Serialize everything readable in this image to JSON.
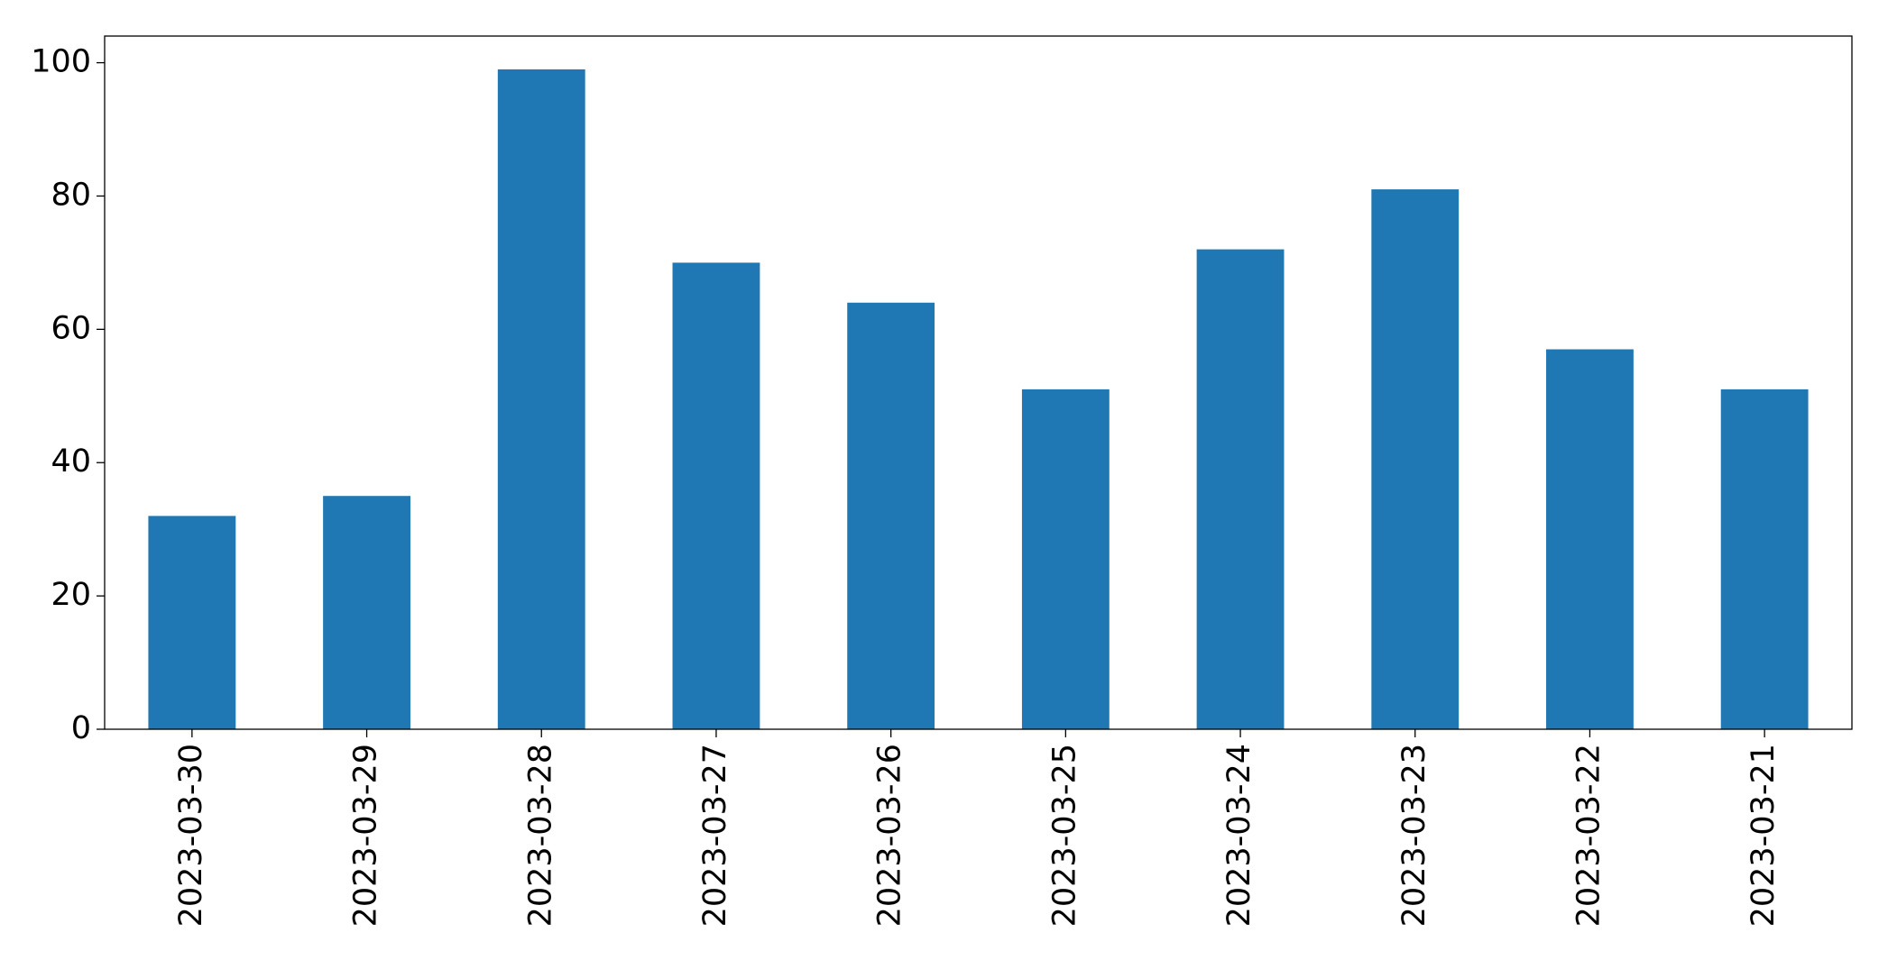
{
  "chart_data": {
    "type": "bar",
    "categories": [
      "2023-03-30",
      "2023-03-29",
      "2023-03-28",
      "2023-03-27",
      "2023-03-26",
      "2023-03-25",
      "2023-03-24",
      "2023-03-23",
      "2023-03-22",
      "2023-03-21"
    ],
    "values": [
      32,
      35,
      99,
      70,
      64,
      51,
      72,
      81,
      57,
      51
    ],
    "color": "#1f77b4",
    "ylim": [
      0,
      104
    ],
    "yticks": [
      0,
      20,
      40,
      60,
      80,
      100
    ],
    "grid": false
  }
}
